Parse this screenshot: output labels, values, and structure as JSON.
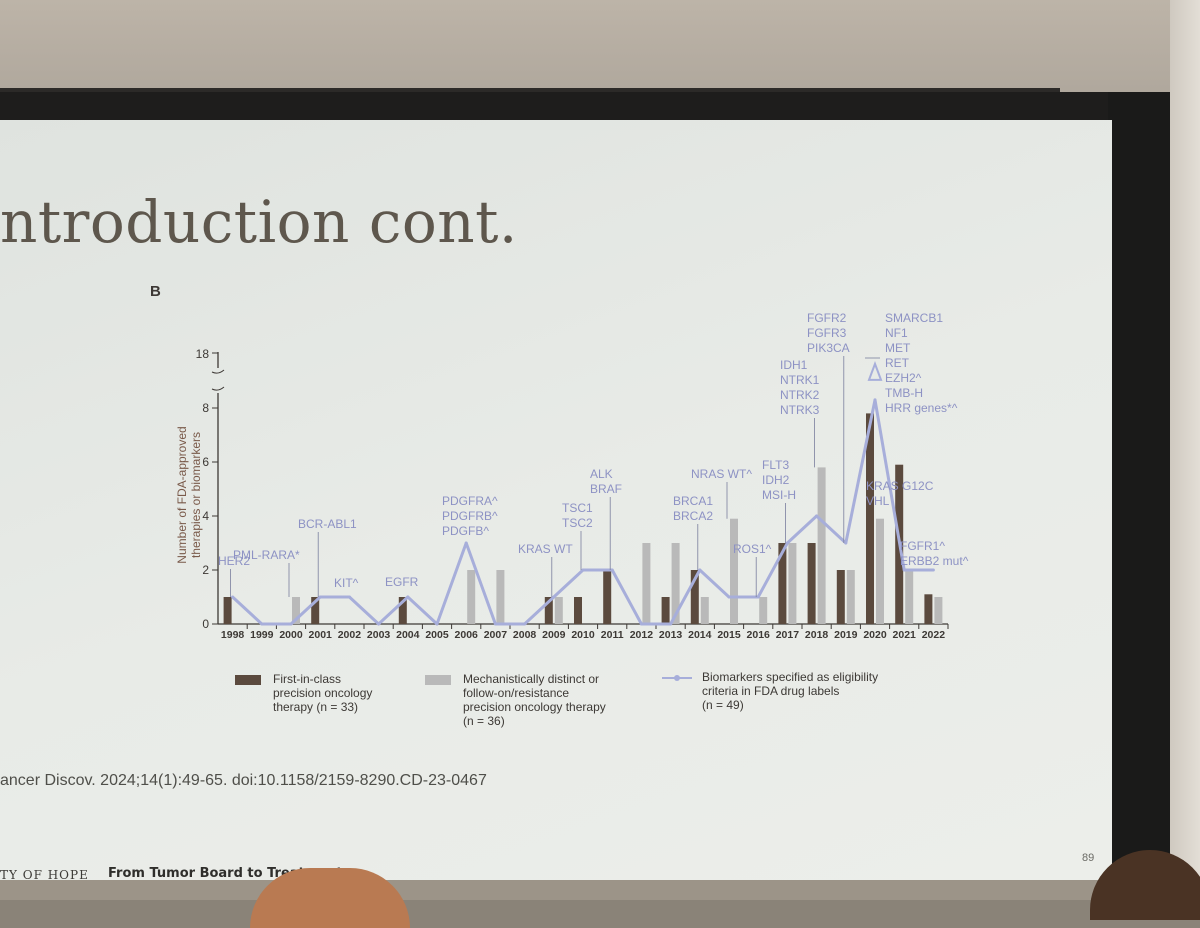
{
  "slide": {
    "title": "ntroduction cont.",
    "panel_letter": "B",
    "citation": "ancer Discov. 2024;14(1):49-65. doi:10.1158/2159-8290.CD-23-0467",
    "footer_org": "TY OF HOPE",
    "footer_title": "From Tumor Board to Treatment",
    "page_number": "89"
  },
  "chart_data": {
    "type": "bar",
    "ylabel": "Number of FDA-approved therapies or biomarkers",
    "ylim": [
      0,
      8.5
    ],
    "y_break_tick": "18",
    "y_ticks": [
      "0",
      "2",
      "4",
      "6",
      "8"
    ],
    "categories": [
      "1998",
      "1999",
      "2000",
      "2001",
      "2002",
      "2003",
      "2004",
      "2005",
      "2006",
      "2007",
      "2008",
      "2009",
      "2010",
      "2011",
      "2012",
      "2013",
      "2014",
      "2015",
      "2016",
      "2017",
      "2018",
      "2019",
      "2020",
      "2021",
      "2022"
    ],
    "series": [
      {
        "name": "First-in-class precision oncology therapy (n = 33)",
        "type": "bar",
        "color": "#5b4a3e",
        "values": [
          1,
          0,
          0,
          1,
          0,
          0,
          1,
          0,
          0,
          0,
          0,
          1,
          1,
          2,
          0,
          1,
          2,
          0,
          0,
          3,
          3,
          2,
          7.8,
          5.9,
          1.1
        ]
      },
      {
        "name": "Mechanistically distinct or follow-on/resistance precision oncology therapy (n = 36)",
        "type": "bar",
        "color": "#b9b9b9",
        "values": [
          0,
          0,
          1,
          0,
          0,
          0,
          0,
          0,
          2,
          2,
          0,
          1,
          0,
          0,
          3,
          3,
          1,
          3.9,
          1,
          3,
          5.8,
          2,
          3.9,
          2,
          1
        ]
      },
      {
        "name": "Biomarkers specified as eligibility criteria in FDA drug labels (n = 49)",
        "type": "line",
        "color": "#a7aeda",
        "values": [
          1,
          0,
          0,
          1,
          1,
          0,
          1,
          0,
          3,
          0,
          0,
          1,
          2,
          2,
          0,
          0,
          2,
          1,
          1,
          3,
          4,
          3,
          8.3,
          2,
          2
        ]
      }
    ],
    "annotations": [
      {
        "year": "1998",
        "lines": [
          "HER2"
        ]
      },
      {
        "year": "2000",
        "lines": [
          "PML-RARA*"
        ]
      },
      {
        "year": "2001",
        "lines": [
          "BCR-ABL1"
        ]
      },
      {
        "year": "2002",
        "lines": [
          "KIT^"
        ]
      },
      {
        "year": "2004",
        "lines": [
          "EGFR"
        ]
      },
      {
        "year": "2006",
        "lines": [
          "PDGFRA^",
          "PDGFRB^",
          "PDGFB^"
        ]
      },
      {
        "year": "2009",
        "lines": [
          "KRAS WT"
        ]
      },
      {
        "year": "2010",
        "lines": [
          "TSC1",
          "TSC2"
        ]
      },
      {
        "year": "2011",
        "lines": [
          "ALK",
          "BRAF"
        ]
      },
      {
        "year": "2014",
        "lines": [
          "BRCA1",
          "BRCA2"
        ]
      },
      {
        "year": "2015",
        "lines": [
          "NRAS WT^"
        ]
      },
      {
        "year": "2016",
        "lines": [
          "ROS1^"
        ]
      },
      {
        "year": "2017",
        "lines": [
          "FLT3",
          "IDH2",
          "MSI-H"
        ]
      },
      {
        "year": "2018",
        "lines": [
          "IDH1",
          "NTRK1",
          "NTRK2",
          "NTRK3"
        ]
      },
      {
        "year": "2019",
        "lines": [
          "FGFR2",
          "FGFR3",
          "PIK3CA"
        ]
      },
      {
        "year": "2020",
        "lines": [
          "SMARCB1",
          "NF1",
          "MET",
          "RET",
          "EZH2^",
          "TMB-H",
          "HRR genes*^"
        ]
      },
      {
        "year": "2021",
        "lines": [
          "KRAS G12C",
          "VHL"
        ]
      },
      {
        "year": "2022",
        "lines": [
          "FGFR1^",
          "ERBB2 mut^"
        ]
      }
    ],
    "legend": [
      {
        "lines": [
          "First-in-class",
          "precision oncology",
          "therapy (n = 33)"
        ]
      },
      {
        "lines": [
          "Mechanistically distinct or",
          "follow-on/resistance",
          "precision oncology therapy",
          "(n = 36)"
        ]
      },
      {
        "lines": [
          "Biomarkers specified as eligibility",
          "criteria in FDA drug labels",
          "(n = 49)"
        ]
      }
    ]
  }
}
